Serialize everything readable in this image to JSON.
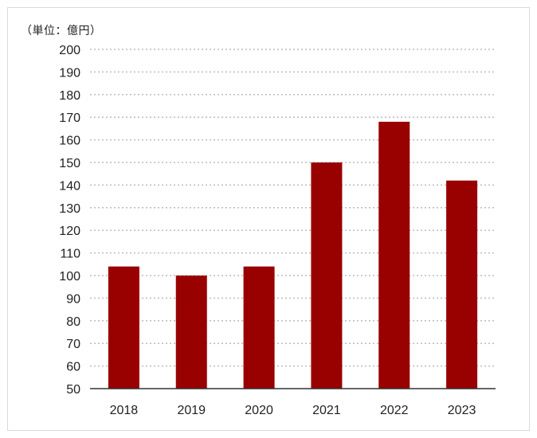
{
  "chart_data": {
    "type": "bar",
    "unit_label": "（単位：億円）",
    "categories": [
      "2018",
      "2019",
      "2020",
      "2021",
      "2022",
      "2023"
    ],
    "values": [
      104,
      100,
      104,
      150,
      168,
      142
    ],
    "ylim": [
      50,
      200
    ],
    "yticks": [
      200,
      190,
      180,
      170,
      160,
      150,
      140,
      130,
      120,
      110,
      100,
      90,
      80,
      70,
      60,
      50
    ],
    "grid": true,
    "bar_color": "#990000",
    "grid_color": "#bbbbbb",
    "axis_color": "#333333"
  }
}
